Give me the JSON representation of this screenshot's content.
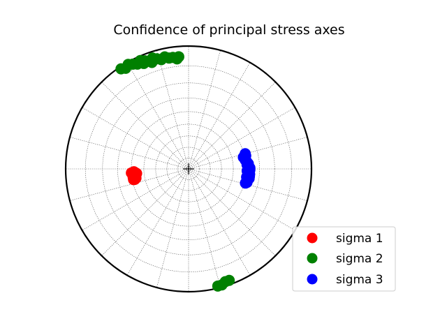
{
  "chart_data": {
    "type": "scatter",
    "projection": "stereonet (lower-hemisphere polar plot)",
    "title": "Confidence of principal stress axes",
    "grid": true,
    "legend_position": "lower-right",
    "series": [
      {
        "name": "sigma 1",
        "color": "#ff0000",
        "points": [
          {
            "trend": 266,
            "plunge": 43
          },
          {
            "trend": 267,
            "plunge": 42
          },
          {
            "trend": 265,
            "plunge": 44
          },
          {
            "trend": 264,
            "plunge": 43
          },
          {
            "trend": 263,
            "plunge": 42
          },
          {
            "trend": 262,
            "plunge": 43
          },
          {
            "trend": 261,
            "plunge": 42
          },
          {
            "trend": 260,
            "plunge": 43
          },
          {
            "trend": 259,
            "plunge": 42
          },
          {
            "trend": 259,
            "plunge": 41
          },
          {
            "trend": 261,
            "plunge": 41
          },
          {
            "trend": 263,
            "plunge": 41
          },
          {
            "trend": 265,
            "plunge": 41
          },
          {
            "trend": 266,
            "plunge": 40
          }
        ]
      },
      {
        "name": "sigma 2",
        "color": "#008000",
        "points": [
          {
            "trend": 326,
            "plunge": 1
          },
          {
            "trend": 328,
            "plunge": 2
          },
          {
            "trend": 330,
            "plunge": 1
          },
          {
            "trend": 332,
            "plunge": 2
          },
          {
            "trend": 334,
            "plunge": 3
          },
          {
            "trend": 336,
            "plunge": 2
          },
          {
            "trend": 338,
            "plunge": 3
          },
          {
            "trend": 340,
            "plunge": 4
          },
          {
            "trend": 342,
            "plunge": 3
          },
          {
            "trend": 344,
            "plunge": 4
          },
          {
            "trend": 346,
            "plunge": 5
          },
          {
            "trend": 348,
            "plunge": 4
          },
          {
            "trend": 350,
            "plunge": 5
          },
          {
            "trend": 352,
            "plunge": 5
          },
          {
            "trend": 354,
            "plunge": 6
          },
          {
            "trend": 355,
            "plunge": 5
          },
          {
            "trend": 337,
            "plunge": 4
          },
          {
            "trend": 341,
            "plunge": 5
          },
          {
            "trend": 160,
            "plunge": 2
          },
          {
            "trend": 162,
            "plunge": 2
          },
          {
            "trend": 164,
            "plunge": 1
          },
          {
            "trend": 166,
            "plunge": 1
          }
        ]
      },
      {
        "name": "sigma 3",
        "color": "#0000ff",
        "points": [
          {
            "trend": 75,
            "plunge": 39
          },
          {
            "trend": 77,
            "plunge": 39
          },
          {
            "trend": 79,
            "plunge": 40
          },
          {
            "trend": 81,
            "plunge": 40
          },
          {
            "trend": 83,
            "plunge": 39
          },
          {
            "trend": 85,
            "plunge": 38
          },
          {
            "trend": 87,
            "plunge": 38
          },
          {
            "trend": 89,
            "plunge": 37
          },
          {
            "trend": 91,
            "plunge": 37
          },
          {
            "trend": 93,
            "plunge": 38
          },
          {
            "trend": 95,
            "plunge": 37
          },
          {
            "trend": 97,
            "plunge": 37
          },
          {
            "trend": 99,
            "plunge": 37
          },
          {
            "trend": 101,
            "plunge": 38
          },
          {
            "trend": 103,
            "plunge": 38
          },
          {
            "trend": 104,
            "plunge": 39
          },
          {
            "trend": 78,
            "plunge": 41
          },
          {
            "trend": 86,
            "plunge": 39
          },
          {
            "trend": 92,
            "plunge": 39
          },
          {
            "trend": 98,
            "plunge": 39
          }
        ]
      }
    ]
  }
}
